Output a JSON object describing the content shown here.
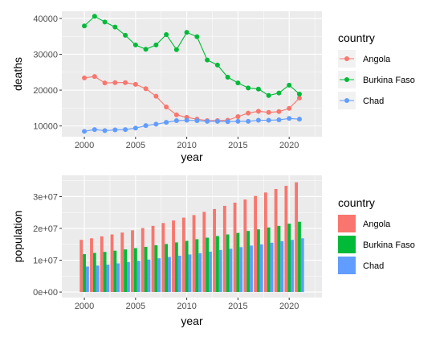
{
  "colors": {
    "Angola": "#F8766D",
    "Burkina Faso": "#00BA38",
    "Chad": "#619CFF"
  },
  "chart_data": [
    {
      "type": "line",
      "xlabel": "year",
      "ylabel": "deaths",
      "legend_title": "country",
      "legend_position": "right",
      "grid": true,
      "xlim": [
        1997.8,
        2023.2
      ],
      "ylim": [
        7000,
        42000
      ],
      "x_ticks": [
        2000,
        2005,
        2010,
        2015,
        2020
      ],
      "x_tick_labels": [
        "2000",
        "2005",
        "2010",
        "2015",
        "2020"
      ],
      "y_ticks": [
        10000,
        20000,
        30000,
        40000
      ],
      "y_tick_labels": [
        "10000",
        "20000",
        "30000",
        "40000"
      ],
      "x": [
        2000,
        2001,
        2002,
        2003,
        2004,
        2005,
        2006,
        2007,
        2008,
        2009,
        2010,
        2011,
        2012,
        2013,
        2014,
        2015,
        2016,
        2017,
        2018,
        2019,
        2020,
        2021
      ],
      "series": [
        {
          "name": "Angola",
          "values": [
            23400,
            23800,
            22000,
            22100,
            22100,
            21600,
            20400,
            18300,
            15300,
            13100,
            12400,
            11900,
            11500,
            11500,
            11600,
            12600,
            13600,
            14100,
            13800,
            14000,
            14900,
            17800
          ]
        },
        {
          "name": "Burkina Faso",
          "values": [
            37900,
            40600,
            39000,
            37600,
            35300,
            32600,
            31400,
            32600,
            35500,
            31300,
            36100,
            34900,
            28400,
            27000,
            23600,
            22000,
            20600,
            20300,
            18500,
            19200,
            21400,
            18900
          ]
        },
        {
          "name": "Chad",
          "values": [
            8500,
            9000,
            8700,
            8900,
            9000,
            9400,
            10100,
            10500,
            11000,
            11500,
            11600,
            11500,
            11300,
            11300,
            11200,
            11300,
            11300,
            11600,
            11600,
            11700,
            12100,
            11900
          ]
        }
      ]
    },
    {
      "type": "bar",
      "xlabel": "year",
      "ylabel": "population",
      "legend_title": "country",
      "legend_position": "right",
      "grid": true,
      "xlim": [
        1997.8,
        2023.2
      ],
      "ylim": [
        -1750000,
        36700000
      ],
      "x_ticks": [
        2000,
        2005,
        2010,
        2015,
        2020
      ],
      "x_tick_labels": [
        "2000",
        "2005",
        "2010",
        "2015",
        "2020"
      ],
      "y_ticks": [
        0,
        10000000,
        20000000,
        30000000
      ],
      "y_tick_labels": [
        "0e+00",
        "1e+07",
        "2e+07",
        "3e+07"
      ],
      "x": [
        2000,
        2001,
        2002,
        2003,
        2004,
        2005,
        2006,
        2007,
        2008,
        2009,
        2010,
        2011,
        2012,
        2013,
        2014,
        2015,
        2016,
        2017,
        2018,
        2019,
        2020,
        2021
      ],
      "series": [
        {
          "name": "Angola",
          "values": [
            16400000,
            16900000,
            17500000,
            18100000,
            18700000,
            19400000,
            20100000,
            20800000,
            21700000,
            22500000,
            23400000,
            24200000,
            25200000,
            26100000,
            27100000,
            28100000,
            29100000,
            30200000,
            31300000,
            32400000,
            33400000,
            34500000
          ]
        },
        {
          "name": "Burkina Faso",
          "values": [
            11900000,
            12300000,
            12600000,
            13000000,
            13400000,
            13800000,
            14200000,
            14700000,
            15100000,
            15600000,
            16100000,
            16600000,
            17100000,
            17600000,
            18100000,
            18600000,
            19200000,
            19700000,
            20300000,
            20800000,
            21500000,
            22100000
          ]
        },
        {
          "name": "Chad",
          "values": [
            8000000,
            8300000,
            8600000,
            9000000,
            9400000,
            9800000,
            10200000,
            10600000,
            11000000,
            11400000,
            11800000,
            12200000,
            12700000,
            13200000,
            13600000,
            14100000,
            14600000,
            15000000,
            15500000,
            16000000,
            16400000,
            16900000
          ]
        }
      ]
    }
  ]
}
